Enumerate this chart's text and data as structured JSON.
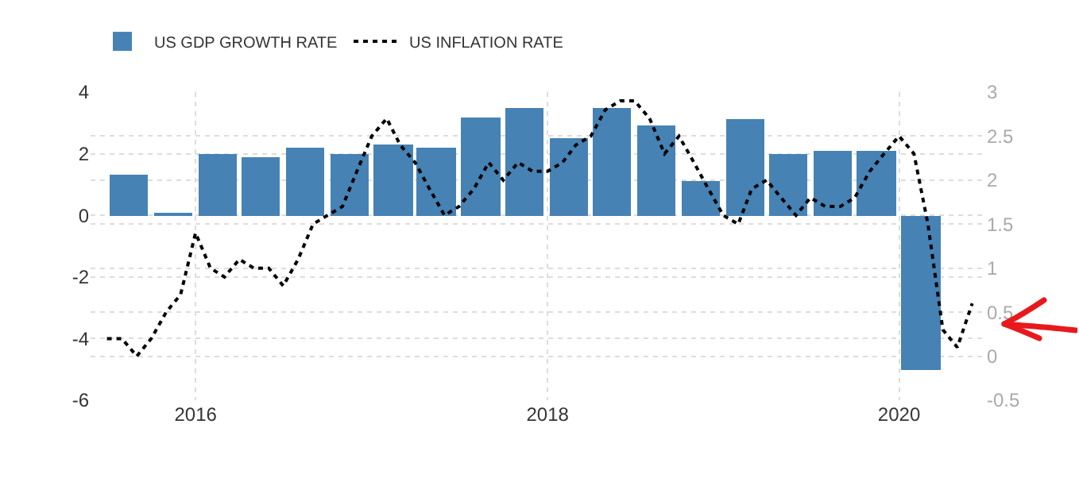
{
  "chart_data": {
    "type": "bar",
    "legend": "top left",
    "grid": true,
    "xlim": [
      "2015-05-28",
      "2020-06-28"
    ],
    "xticks": [
      {
        "value": "2016-01-01",
        "label": "2016"
      },
      {
        "value": "2018-01-01",
        "label": "2018"
      },
      {
        "value": "2020-01-01",
        "label": "2020"
      }
    ],
    "ylim": [
      -6,
      4
    ],
    "yticks": [
      -6,
      -4,
      -2,
      0,
      2,
      4
    ],
    "y2lim": [
      -0.5,
      3
    ],
    "y2ticks": [
      -0.5,
      0,
      0.5,
      1,
      1.5,
      2,
      2.5,
      3
    ],
    "series": [
      {
        "name": "US GDP GROWTH RATE",
        "color": "#4682b4",
        "x": [
          "2015-08-15",
          "2015-11-15",
          "2016-02-15",
          "2016-05-15",
          "2016-08-15",
          "2016-11-15",
          "2017-02-15",
          "2017-05-15",
          "2017-08-15",
          "2017-11-15",
          "2018-02-15",
          "2018-05-15",
          "2018-08-15",
          "2018-11-15",
          "2019-02-15",
          "2019-05-15",
          "2019-08-15",
          "2019-11-15",
          "2020-02-15"
        ],
        "values": [
          1.3,
          0.1,
          2.0,
          1.9,
          2.2,
          2.0,
          2.3,
          2.2,
          3.2,
          3.5,
          2.5,
          3.5,
          2.9,
          1.1,
          3.1,
          2.0,
          2.1,
          2.1,
          -5.0
        ]
      },
      {
        "name": "US INFLATION RATE",
        "type": "line",
        "axis": "y2",
        "color": "#000000",
        "line_style": "dotted",
        "x": [
          "2015-07",
          "2015-08",
          "2015-09",
          "2015-10",
          "2015-11",
          "2015-12",
          "2016-01",
          "2016-02",
          "2016-03",
          "2016-04",
          "2016-05",
          "2016-06",
          "2016-07",
          "2016-08",
          "2016-09",
          "2016-10",
          "2016-11",
          "2016-12",
          "2017-01",
          "2017-02",
          "2017-03",
          "2017-04",
          "2017-05",
          "2017-06",
          "2017-07",
          "2017-08",
          "2017-09",
          "2017-10",
          "2017-11",
          "2017-12",
          "2018-01",
          "2018-02",
          "2018-03",
          "2018-04",
          "2018-05",
          "2018-06",
          "2018-07",
          "2018-08",
          "2018-09",
          "2018-10",
          "2018-11",
          "2018-12",
          "2019-01",
          "2019-02",
          "2019-03",
          "2019-04",
          "2019-05",
          "2019-06",
          "2019-07",
          "2019-08",
          "2019-09",
          "2019-10",
          "2019-11",
          "2019-12",
          "2020-01",
          "2020-02",
          "2020-03",
          "2020-04",
          "2020-05",
          "2020-06"
        ],
        "values": [
          0.2,
          0.2,
          0.0,
          0.2,
          0.5,
          0.7,
          1.4,
          1.0,
          0.9,
          1.1,
          1.0,
          1.0,
          0.8,
          1.1,
          1.5,
          1.6,
          1.7,
          2.1,
          2.5,
          2.7,
          2.4,
          2.2,
          1.9,
          1.6,
          1.7,
          1.9,
          2.2,
          2.0,
          2.2,
          2.1,
          2.1,
          2.2,
          2.4,
          2.5,
          2.8,
          2.9,
          2.9,
          2.7,
          2.3,
          2.5,
          2.2,
          1.9,
          1.6,
          1.5,
          1.9,
          2.0,
          1.8,
          1.6,
          1.8,
          1.7,
          1.7,
          1.8,
          2.1,
          2.3,
          2.5,
          2.3,
          1.5,
          0.3,
          0.1,
          0.6
        ]
      }
    ]
  }
}
